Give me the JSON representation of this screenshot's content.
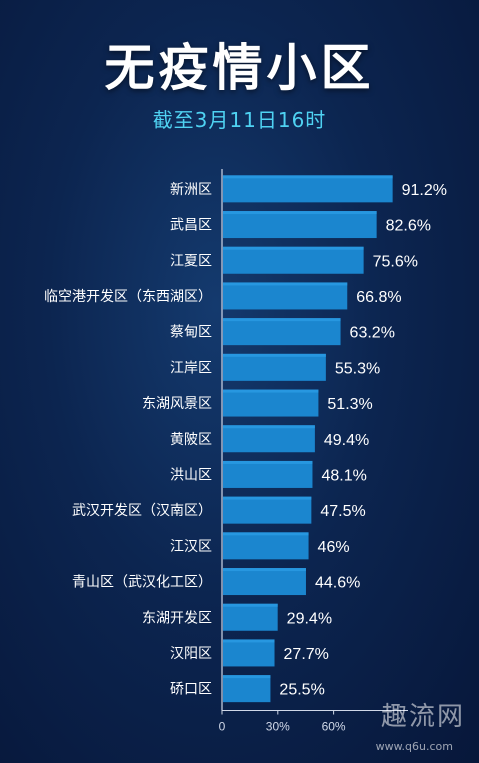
{
  "title": "无疫情小区",
  "subtitle": "截至3月11日16时",
  "watermark": "趣流网",
  "watermark_url": "www.q6u.com",
  "colors": {
    "bar": "#1b86cf",
    "bar_highlight": "#2a9be3",
    "label": "#ffffff",
    "axis": "#d0d8e8",
    "subtitle": "#4fd2f2"
  },
  "chart_data": {
    "type": "bar",
    "orientation": "horizontal",
    "categories": [
      "新洲区",
      "武昌区",
      "江夏区",
      "临空港开发区（东西湖区）",
      "蔡甸区",
      "江岸区",
      "东湖风景区",
      "黄陂区",
      "洪山区",
      "武汉开发区（汉南区）",
      "江汉区",
      "青山区（武汉化工区）",
      "东湖开发区",
      "汉阳区",
      "硚口区"
    ],
    "values": [
      91.2,
      82.6,
      75.6,
      66.8,
      63.2,
      55.3,
      51.3,
      49.4,
      48.1,
      47.5,
      46,
      44.6,
      29.4,
      27.7,
      25.5
    ],
    "value_labels": [
      "91.2%",
      "82.6%",
      "75.6%",
      "66.8%",
      "63.2%",
      "55.3%",
      "51.3%",
      "49.4%",
      "48.1%",
      "47.5%",
      "46%",
      "44.6%",
      "29.4%",
      "27.7%",
      "25.5%"
    ],
    "xticks": [
      "0",
      "30%",
      "60%"
    ],
    "xtick_values": [
      0,
      30,
      60
    ],
    "xlim": [
      0,
      100
    ],
    "xlabel": "",
    "ylabel": "",
    "grid": false
  }
}
